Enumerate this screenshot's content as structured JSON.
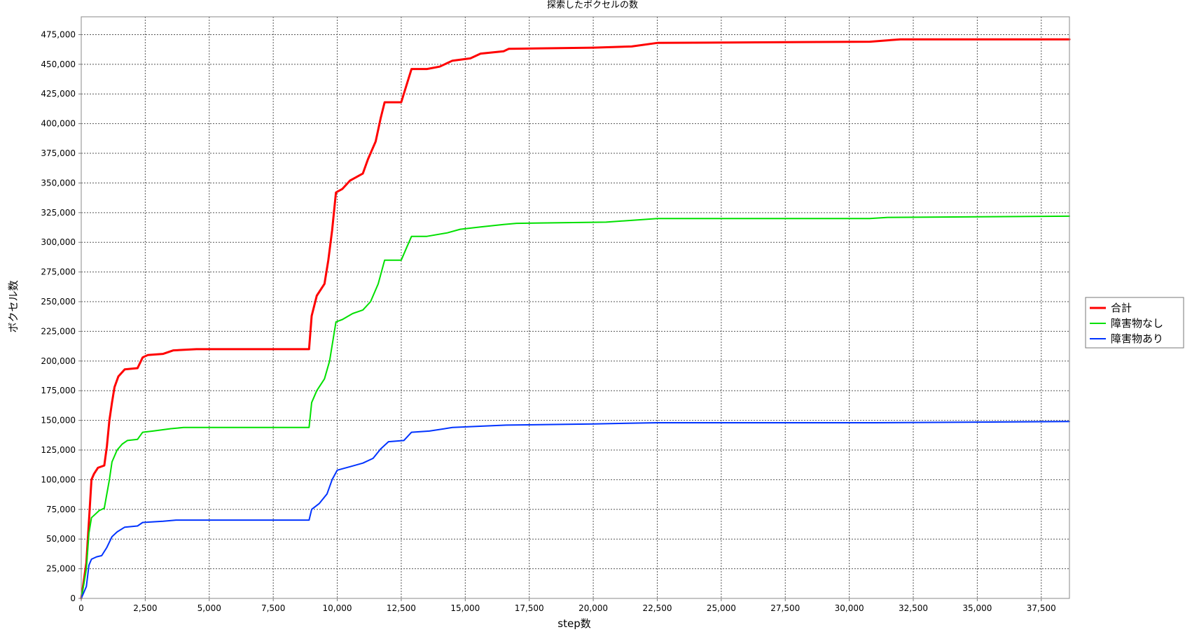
{
  "chart_data": {
    "type": "line",
    "title": "探索したボクセルの数",
    "xlabel": "step数",
    "ylabel": "ボクセル数",
    "xlim": [
      0,
      38600
    ],
    "ylim": [
      0,
      490000
    ],
    "grid": true,
    "legend_position": "right",
    "x_ticks": [
      0,
      2500,
      5000,
      7500,
      10000,
      12500,
      15000,
      17500,
      20000,
      22500,
      25000,
      27500,
      30000,
      32500,
      35000,
      37500
    ],
    "x_tick_labels": [
      "0",
      "2,500",
      "5,000",
      "7,500",
      "10,000",
      "12,500",
      "15,000",
      "17,500",
      "20,000",
      "22,500",
      "25,000",
      "27,500",
      "30,000",
      "32,500",
      "35,000",
      "37,500"
    ],
    "y_ticks": [
      0,
      25000,
      50000,
      75000,
      100000,
      125000,
      150000,
      175000,
      200000,
      225000,
      250000,
      275000,
      300000,
      325000,
      350000,
      375000,
      400000,
      425000,
      450000,
      475000
    ],
    "y_tick_labels": [
      "0",
      "25,000",
      "50,000",
      "75,000",
      "100,000",
      "125,000",
      "150,000",
      "175,000",
      "200,000",
      "225,000",
      "250,000",
      "275,000",
      "300,000",
      "325,000",
      "350,000",
      "375,000",
      "400,000",
      "425,000",
      "450,000",
      "475,000"
    ],
    "series": [
      {
        "name": "合計",
        "color": "#ff0000",
        "width": 3,
        "points": [
          [
            0,
            0
          ],
          [
            100,
            15000
          ],
          [
            200,
            30000
          ],
          [
            300,
            65000
          ],
          [
            400,
            100000
          ],
          [
            500,
            105000
          ],
          [
            650,
            110000
          ],
          [
            900,
            112000
          ],
          [
            1000,
            128000
          ],
          [
            1100,
            150000
          ],
          [
            1200,
            165000
          ],
          [
            1300,
            178000
          ],
          [
            1450,
            187000
          ],
          [
            1700,
            193000
          ],
          [
            2200,
            194000
          ],
          [
            2400,
            203000
          ],
          [
            2600,
            205000
          ],
          [
            3200,
            206000
          ],
          [
            3600,
            209000
          ],
          [
            4500,
            210000
          ],
          [
            8900,
            210000
          ],
          [
            9000,
            238000
          ],
          [
            9200,
            255000
          ],
          [
            9500,
            265000
          ],
          [
            9650,
            285000
          ],
          [
            9800,
            310000
          ],
          [
            9950,
            342000
          ],
          [
            10200,
            345000
          ],
          [
            10500,
            352000
          ],
          [
            11000,
            358000
          ],
          [
            11200,
            370000
          ],
          [
            11500,
            385000
          ],
          [
            11700,
            405000
          ],
          [
            11850,
            418000
          ],
          [
            12500,
            418000
          ],
          [
            12700,
            432000
          ],
          [
            12900,
            446000
          ],
          [
            13500,
            446000
          ],
          [
            14000,
            448000
          ],
          [
            14500,
            453000
          ],
          [
            15200,
            455000
          ],
          [
            15600,
            459000
          ],
          [
            16500,
            461000
          ],
          [
            16700,
            463000
          ],
          [
            20000,
            464000
          ],
          [
            21500,
            465000
          ],
          [
            22500,
            468000
          ],
          [
            30800,
            469000
          ],
          [
            32000,
            471000
          ],
          [
            38600,
            471000
          ]
        ]
      },
      {
        "name": "障害物なし",
        "color": "#00e000",
        "width": 2,
        "points": [
          [
            0,
            0
          ],
          [
            100,
            12000
          ],
          [
            200,
            25000
          ],
          [
            300,
            55000
          ],
          [
            400,
            68000
          ],
          [
            500,
            70000
          ],
          [
            700,
            74000
          ],
          [
            900,
            76000
          ],
          [
            1100,
            100000
          ],
          [
            1200,
            115000
          ],
          [
            1400,
            125000
          ],
          [
            1600,
            130000
          ],
          [
            1800,
            133000
          ],
          [
            2200,
            134000
          ],
          [
            2400,
            140000
          ],
          [
            2800,
            141000
          ],
          [
            3500,
            143000
          ],
          [
            4000,
            144000
          ],
          [
            8900,
            144000
          ],
          [
            9000,
            165000
          ],
          [
            9200,
            175000
          ],
          [
            9500,
            185000
          ],
          [
            9700,
            200000
          ],
          [
            9950,
            233000
          ],
          [
            10200,
            235000
          ],
          [
            10600,
            240000
          ],
          [
            11000,
            243000
          ],
          [
            11300,
            250000
          ],
          [
            11600,
            265000
          ],
          [
            11850,
            285000
          ],
          [
            12500,
            285000
          ],
          [
            12700,
            295000
          ],
          [
            12900,
            305000
          ],
          [
            13500,
            305000
          ],
          [
            14300,
            308000
          ],
          [
            14800,
            311000
          ],
          [
            15600,
            313000
          ],
          [
            16500,
            315000
          ],
          [
            17000,
            316000
          ],
          [
            20500,
            317000
          ],
          [
            22500,
            320000
          ],
          [
            30800,
            320000
          ],
          [
            31500,
            321000
          ],
          [
            38600,
            322000
          ]
        ]
      },
      {
        "name": "障害物あり",
        "color": "#0033ff",
        "width": 2,
        "points": [
          [
            0,
            0
          ],
          [
            100,
            5000
          ],
          [
            200,
            10000
          ],
          [
            300,
            28000
          ],
          [
            400,
            33000
          ],
          [
            600,
            35000
          ],
          [
            800,
            36000
          ],
          [
            1000,
            43000
          ],
          [
            1200,
            52000
          ],
          [
            1400,
            56000
          ],
          [
            1700,
            60000
          ],
          [
            2200,
            61000
          ],
          [
            2400,
            64000
          ],
          [
            3200,
            65000
          ],
          [
            3700,
            66000
          ],
          [
            8900,
            66000
          ],
          [
            9000,
            75000
          ],
          [
            9300,
            80000
          ],
          [
            9600,
            88000
          ],
          [
            9800,
            100000
          ],
          [
            10000,
            108000
          ],
          [
            10500,
            111000
          ],
          [
            11000,
            114000
          ],
          [
            11400,
            118000
          ],
          [
            11700,
            126000
          ],
          [
            12000,
            132000
          ],
          [
            12600,
            133000
          ],
          [
            12900,
            140000
          ],
          [
            13600,
            141000
          ],
          [
            14500,
            144000
          ],
          [
            15500,
            145000
          ],
          [
            16600,
            146000
          ],
          [
            20000,
            147000
          ],
          [
            22500,
            148000
          ],
          [
            31000,
            148000
          ],
          [
            38600,
            149000
          ]
        ]
      }
    ]
  }
}
